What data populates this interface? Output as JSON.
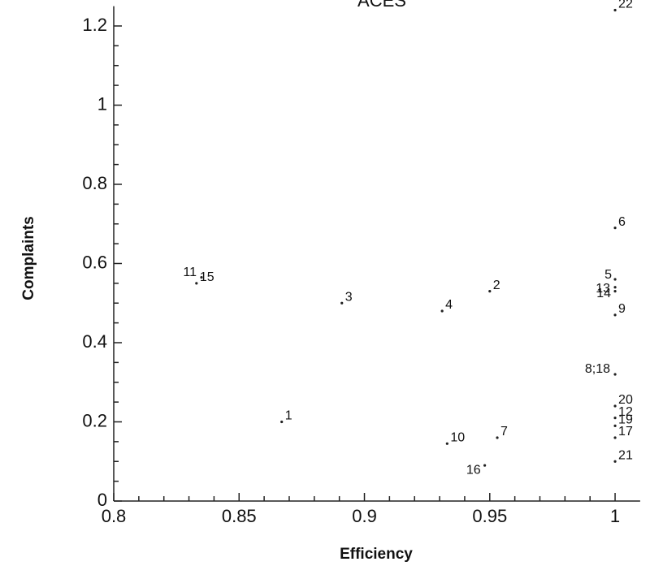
{
  "chart_data": {
    "type": "scatter",
    "title": "ACES",
    "x_label": "Efficiency",
    "y_label": "Complaints",
    "xlim": [
      0.8,
      1.01
    ],
    "xticks": [
      0.8,
      0.85,
      0.9,
      0.95,
      1
    ],
    "ylim": [
      0,
      1.25
    ],
    "yticks": [
      0,
      0.2,
      0.4,
      0.6,
      0.8,
      1,
      1.2
    ],
    "series": [
      {
        "color": "#222",
        "labels": [
          "1",
          "2",
          "3",
          "4",
          "5",
          "6",
          "7",
          "8;18",
          "9",
          "10",
          "11",
          "12",
          "13",
          "14",
          "15",
          "16",
          "17",
          "19",
          "20",
          "21",
          "22"
        ],
        "x": [
          0.867,
          0.95,
          0.891,
          0.931,
          1,
          1,
          0.953,
          1,
          1,
          0.933,
          0.835,
          1,
          1,
          1,
          0.833,
          0.948,
          1,
          1,
          1,
          1,
          1
        ],
        "values": [
          0.2,
          0.53,
          0.5,
          0.48,
          0.56,
          0.69,
          0.16,
          0.32,
          0.47,
          0.145,
          0.565,
          0.21,
          0.54,
          0.53,
          0.55,
          0.09,
          0.16,
          0.19,
          0.24,
          0.1,
          1.24
        ]
      }
    ]
  }
}
